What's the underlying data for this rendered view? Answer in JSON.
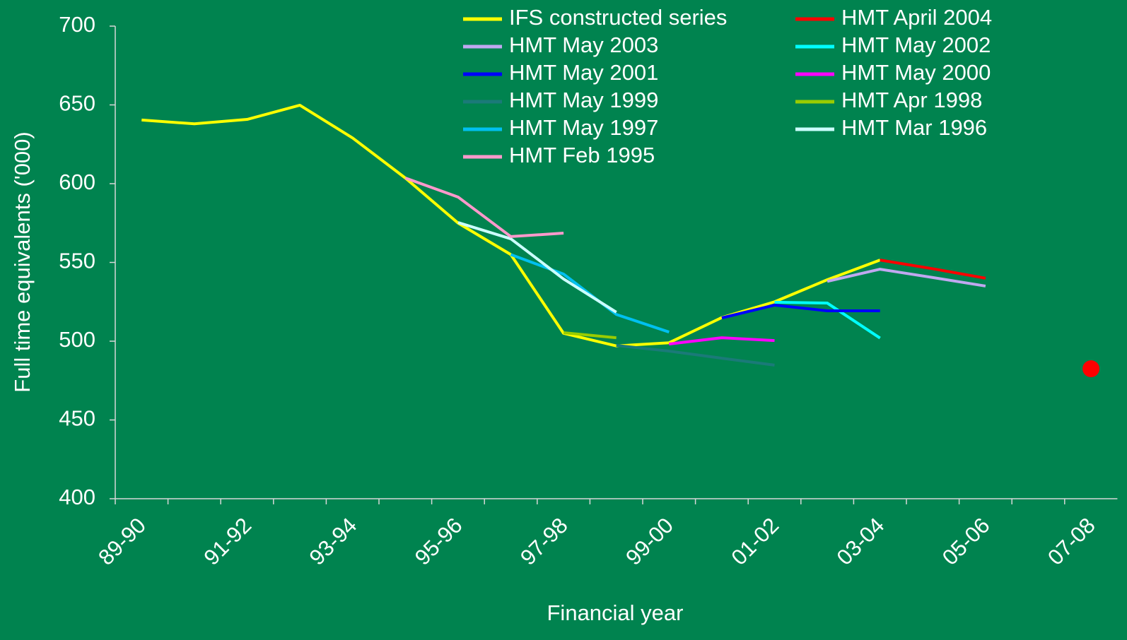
{
  "chart_data": {
    "type": "line",
    "x_label": "Financial year",
    "y_label": "Full time equivalents ('000)",
    "categories": [
      "89-90",
      null,
      "91-92",
      null,
      "93-94",
      null,
      "95-96",
      null,
      "97-98",
      null,
      "99-00",
      null,
      "01-02",
      null,
      "03-04",
      null,
      "05-06",
      null,
      "07-08"
    ],
    "ylim": [
      400,
      700
    ],
    "yticks": [
      400,
      450,
      500,
      550,
      600,
      650,
      700
    ],
    "legend": "top",
    "series": [
      {
        "name": "IFS constructed series",
        "color": "#ffff00",
        "values": [
          640.4,
          638,
          640.8,
          649.8,
          629,
          603.6,
          575,
          555,
          505,
          497,
          499,
          515,
          525,
          539,
          551.5,
          null,
          null,
          null,
          null
        ]
      },
      {
        "name": "HMT April 2004",
        "color": "#ff0000",
        "values": [
          null,
          null,
          null,
          null,
          null,
          null,
          null,
          null,
          null,
          null,
          null,
          null,
          null,
          null,
          551.5,
          546,
          540,
          null,
          null
        ]
      },
      {
        "name": "HMT May 2003",
        "color": "#c0a8f0",
        "values": [
          null,
          null,
          null,
          null,
          null,
          null,
          null,
          null,
          null,
          null,
          null,
          null,
          null,
          538,
          545.7,
          540.4,
          535,
          null,
          null
        ]
      },
      {
        "name": "HMT May 2002",
        "color": "#00ffff",
        "values": [
          null,
          null,
          null,
          null,
          null,
          null,
          null,
          null,
          null,
          null,
          null,
          null,
          524.7,
          524.2,
          502,
          null,
          null,
          null,
          null
        ]
      },
      {
        "name": "HMT May 2001",
        "color": "#0000ff",
        "values": [
          null,
          null,
          null,
          null,
          null,
          null,
          null,
          null,
          null,
          null,
          null,
          514.8,
          522.9,
          519.3,
          519.3,
          null,
          null,
          null,
          null
        ]
      },
      {
        "name": "HMT May 2000",
        "color": "#ff00ff",
        "values": [
          null,
          null,
          null,
          null,
          null,
          null,
          null,
          null,
          null,
          null,
          498.2,
          502.2,
          500.4,
          null,
          null,
          null,
          null,
          null,
          null
        ]
      },
      {
        "name": "HMT May 1999",
        "color": "#1a7a78",
        "values": [
          null,
          null,
          null,
          null,
          null,
          null,
          null,
          null,
          null,
          497.3,
          493.7,
          489.2,
          484.8,
          null,
          null,
          null,
          null,
          null,
          null
        ]
      },
      {
        "name": "HMT Apr 1998",
        "color": "#99cc00",
        "values": [
          null,
          null,
          null,
          null,
          null,
          null,
          null,
          null,
          505.4,
          502.2,
          null,
          null,
          null,
          null,
          null,
          null,
          null,
          null,
          null
        ]
      },
      {
        "name": "HMT May 1997",
        "color": "#00c0f0",
        "values": [
          null,
          null,
          null,
          null,
          null,
          null,
          null,
          555,
          542.6,
          517,
          505.8,
          null,
          null,
          null,
          null,
          null,
          null,
          null,
          null
        ]
      },
      {
        "name": "HMT Mar 1996",
        "color": "#ccffff",
        "values": [
          null,
          null,
          null,
          null,
          null,
          null,
          575.3,
          565,
          539.5,
          518.4,
          null,
          null,
          null,
          null,
          null,
          null,
          null,
          null,
          null
        ]
      },
      {
        "name": "HMT Feb 1995",
        "color": "#ff99cc",
        "values": [
          null,
          null,
          null,
          null,
          null,
          603.6,
          591.5,
          566.4,
          568.6,
          null,
          null,
          null,
          null,
          null,
          null,
          null,
          null,
          null,
          null
        ]
      },
      {
        "color": "#ff0000",
        "marker": true,
        "values": [
          null,
          null,
          null,
          null,
          null,
          null,
          null,
          null,
          null,
          null,
          null,
          null,
          null,
          null,
          null,
          null,
          null,
          null,
          482.5
        ]
      }
    ]
  }
}
